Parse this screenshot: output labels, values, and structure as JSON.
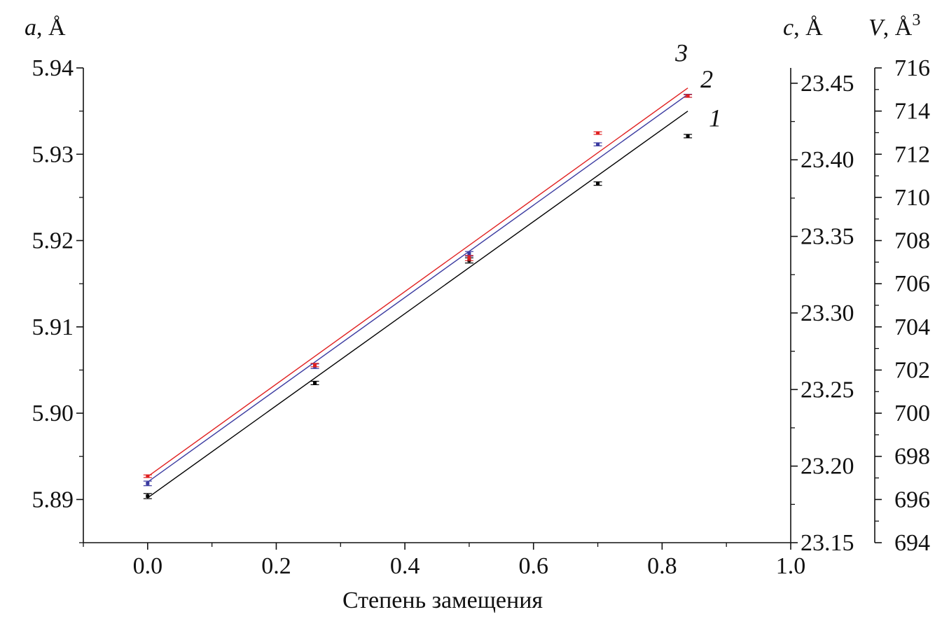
{
  "chart_data": {
    "type": "line",
    "xlabel": "Степень замещения",
    "xlim": [
      -0.1,
      1.0
    ],
    "xticks": [
      "0.0",
      "0.2",
      "0.4",
      "0.6",
      "0.8",
      "1.0"
    ],
    "axes": {
      "a": {
        "label_var": "a",
        "label_unit": ", Å",
        "lim": [
          5.885,
          5.94
        ],
        "ticks": [
          "5.89",
          "5.90",
          "5.91",
          "5.92",
          "5.93",
          "5.94"
        ]
      },
      "c": {
        "label_var": "c",
        "label_unit": ", Å",
        "lim": [
          23.15,
          23.46
        ],
        "ticks": [
          "23.15",
          "23.20",
          "23.25",
          "23.30",
          "23.35",
          "23.40",
          "23.45"
        ]
      },
      "V": {
        "label_var": "V",
        "label_unit": ", Å",
        "label_sup": "3",
        "lim": [
          694,
          716
        ],
        "ticks": [
          "694",
          "696",
          "698",
          "700",
          "702",
          "704",
          "706",
          "708",
          "710",
          "712",
          "714",
          "716"
        ]
      }
    },
    "series": [
      {
        "name": "1",
        "axis": "a",
        "color": "#000000",
        "x": [
          0.0,
          0.26,
          0.5,
          0.7,
          0.84
        ],
        "y": [
          5.8904,
          5.9035,
          5.9177,
          5.9266,
          5.9321
        ],
        "err": [
          0.0003,
          0.0002,
          0.0003,
          0.0002,
          0.0002
        ],
        "fit": {
          "x": [
            0.0,
            0.84
          ],
          "y": [
            5.8902,
            5.935
          ]
        }
      },
      {
        "name": "2",
        "axis": "c",
        "color": "#3a3aa0",
        "x": [
          0.0,
          0.26,
          0.5,
          0.7,
          0.84
        ],
        "y": [
          23.1887,
          23.2652,
          23.3386,
          23.4101,
          23.4418
        ],
        "err": [
          0.0015,
          0.0015,
          0.0015,
          0.001,
          0.001
        ],
        "fit": {
          "x": [
            0.0,
            0.84
          ],
          "y": [
            23.1896,
            23.4427
          ]
        }
      },
      {
        "name": "3",
        "axis": "V",
        "color": "#e02020",
        "x": [
          0.0,
          0.26,
          0.5,
          0.7,
          0.84
        ],
        "y": [
          697.08,
          702.23,
          707.19,
          712.98,
          714.7
        ],
        "err": [
          0.06,
          0.08,
          0.12,
          0.06,
          0.06
        ],
        "fit": {
          "x": [
            0.0,
            0.84
          ],
          "y": [
            697.06,
            715.07
          ]
        }
      }
    ]
  }
}
